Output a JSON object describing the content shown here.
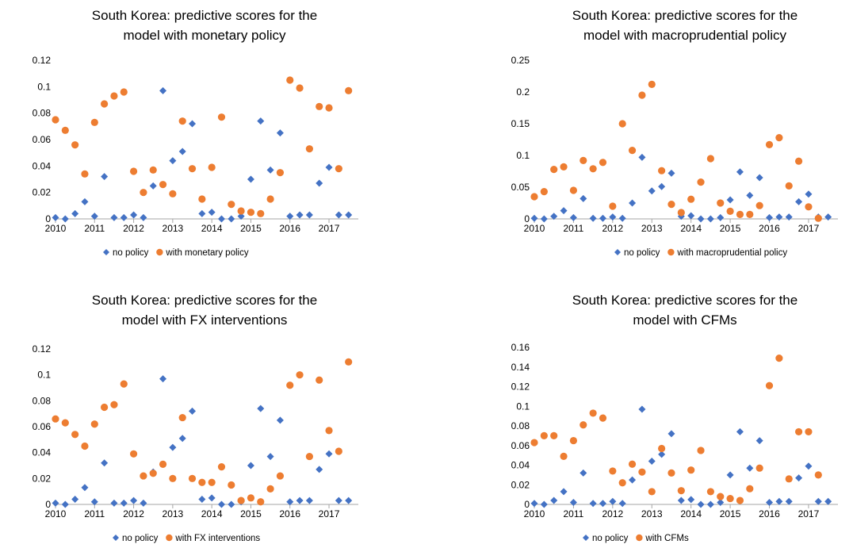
{
  "colors": {
    "no_policy": "#4472C4",
    "with_policy": "#ED7D31",
    "axis": "#A6A6A6",
    "text": "#000000"
  },
  "chart_data": [
    {
      "type": "scatter",
      "title": [
        "South Korea: predictive scores for the",
        "model with monetary policy"
      ],
      "ylim": [
        0,
        0.12
      ],
      "yticks": [
        0,
        0.02,
        0.04,
        0.06,
        0.08,
        0.1,
        0.12
      ],
      "ytick_labels": [
        "0",
        "0.02",
        "0.04",
        "0.06",
        "0.08",
        "0.1",
        "0.12"
      ],
      "xlim": [
        2010,
        2017.75
      ],
      "xticks": [
        2010,
        2011,
        2012,
        2013,
        2014,
        2015,
        2016,
        2017
      ],
      "xtick_labels": [
        "2010",
        "2011",
        "2012",
        "2013",
        "2014",
        "2015",
        "2016",
        "2017"
      ],
      "legend": [
        "no policy",
        "with monetary policy"
      ],
      "legend_position": "bottom",
      "series": [
        {
          "name": "no policy",
          "marker": "diamond",
          "x": [
            2010,
            2010.25,
            2010.5,
            2010.75,
            2011,
            2011.25,
            2011.5,
            2011.75,
            2012,
            2012.25,
            2012.5,
            2012.75,
            2013,
            2013.25,
            2013.5,
            2013.75,
            2014,
            2014.25,
            2014.5,
            2014.75,
            2015,
            2015.25,
            2015.5,
            2015.75,
            2016,
            2016.25,
            2016.5,
            2016.75,
            2017,
            2017.25,
            2017.5
          ],
          "y": [
            0.001,
            0.0,
            0.004,
            0.013,
            0.002,
            0.032,
            0.001,
            0.001,
            0.003,
            0.001,
            0.025,
            0.097,
            0.044,
            0.051,
            0.072,
            0.004,
            0.005,
            0.0,
            0.0,
            0.002,
            0.03,
            0.074,
            0.037,
            0.065,
            0.002,
            0.003,
            0.003,
            0.027,
            0.039,
            0.003,
            0.003
          ]
        },
        {
          "name": "with monetary policy",
          "marker": "circle",
          "x": [
            2010,
            2010.25,
            2010.5,
            2010.75,
            2011,
            2011.25,
            2011.5,
            2011.75,
            2012,
            2012.25,
            2012.5,
            2012.75,
            2013,
            2013.25,
            2013.5,
            2013.75,
            2014,
            2014.25,
            2014.5,
            2014.75,
            2015,
            2015.25,
            2015.5,
            2015.75,
            2016,
            2016.25,
            2016.5,
            2016.75,
            2017,
            2017.25,
            2017.5
          ],
          "y": [
            0.075,
            0.067,
            0.056,
            0.034,
            0.073,
            0.087,
            0.093,
            0.096,
            0.036,
            0.02,
            0.037,
            0.026,
            0.019,
            0.074,
            0.038,
            0.015,
            0.039,
            0.077,
            0.011,
            0.006,
            0.005,
            0.004,
            0.015,
            0.035,
            0.105,
            0.099,
            0.053,
            0.085,
            0.084,
            0.038,
            0.097
          ]
        }
      ]
    },
    {
      "type": "scatter",
      "title": [
        "South Korea: predictive scores for the",
        "model with macroprudential policy"
      ],
      "ylim": [
        0,
        0.25
      ],
      "yticks": [
        0,
        0.05,
        0.1,
        0.15,
        0.2,
        0.25
      ],
      "ytick_labels": [
        "0",
        "0.05",
        "0.1",
        "0.15",
        "0.2",
        "0.25"
      ],
      "xlim": [
        2010,
        2017.75
      ],
      "xticks": [
        2010,
        2011,
        2012,
        2013,
        2014,
        2015,
        2016,
        2017
      ],
      "xtick_labels": [
        "2010",
        "2011",
        "2012",
        "2013",
        "2014",
        "2015",
        "2016",
        "2017"
      ],
      "legend": [
        "no policy",
        "with macroprudential policy"
      ],
      "legend_position": "bottom",
      "series": [
        {
          "name": "no policy",
          "marker": "diamond",
          "x": [
            2010,
            2010.25,
            2010.5,
            2010.75,
            2011,
            2011.25,
            2011.5,
            2011.75,
            2012,
            2012.25,
            2012.5,
            2012.75,
            2013,
            2013.25,
            2013.5,
            2013.75,
            2014,
            2014.25,
            2014.5,
            2014.75,
            2015,
            2015.25,
            2015.5,
            2015.75,
            2016,
            2016.25,
            2016.5,
            2016.75,
            2017,
            2017.25,
            2017.5
          ],
          "y": [
            0.001,
            0.0,
            0.004,
            0.013,
            0.002,
            0.032,
            0.001,
            0.001,
            0.003,
            0.001,
            0.025,
            0.097,
            0.044,
            0.051,
            0.072,
            0.004,
            0.005,
            0.0,
            0.0,
            0.002,
            0.03,
            0.074,
            0.037,
            0.065,
            0.002,
            0.003,
            0.003,
            0.027,
            0.039,
            0.003,
            0.003
          ]
        },
        {
          "name": "with macroprudential policy",
          "marker": "circle",
          "x": [
            2010,
            2010.25,
            2010.5,
            2010.75,
            2011,
            2011.25,
            2011.5,
            2011.75,
            2012,
            2012.25,
            2012.5,
            2012.75,
            2013,
            2013.25,
            2013.5,
            2013.75,
            2014,
            2014.25,
            2014.5,
            2014.75,
            2015,
            2015.25,
            2015.5,
            2015.75,
            2016,
            2016.25,
            2016.5,
            2016.75,
            2017,
            2017.25
          ],
          "y": [
            0.035,
            0.043,
            0.078,
            0.082,
            0.045,
            0.092,
            0.079,
            0.089,
            0.02,
            0.15,
            0.108,
            0.195,
            0.212,
            0.076,
            0.023,
            0.01,
            0.031,
            0.058,
            0.095,
            0.025,
            0.012,
            0.007,
            0.007,
            0.021,
            0.117,
            0.128,
            0.052,
            0.091,
            0.019,
            0.001
          ]
        }
      ]
    },
    {
      "type": "scatter",
      "title": [
        "South Korea: predictive scores for the",
        "model with FX interventions"
      ],
      "ylim": [
        0,
        0.12
      ],
      "yticks": [
        0,
        0.02,
        0.04,
        0.06,
        0.08,
        0.1,
        0.12
      ],
      "ytick_labels": [
        "0",
        "0.02",
        "0.04",
        "0.06",
        "0.08",
        "0.1",
        "0.12"
      ],
      "xlim": [
        2010,
        2017.75
      ],
      "xticks": [
        2010,
        2011,
        2012,
        2013,
        2014,
        2015,
        2016,
        2017
      ],
      "xtick_labels": [
        "2010",
        "2011",
        "2012",
        "2013",
        "2014",
        "2015",
        "2016",
        "2017"
      ],
      "legend": [
        "no policy",
        "with FX interventions"
      ],
      "legend_position": "bottom",
      "series": [
        {
          "name": "no policy",
          "marker": "diamond",
          "x": [
            2010,
            2010.25,
            2010.5,
            2010.75,
            2011,
            2011.25,
            2011.5,
            2011.75,
            2012,
            2012.25,
            2012.5,
            2012.75,
            2013,
            2013.25,
            2013.5,
            2013.75,
            2014,
            2014.25,
            2014.5,
            2014.75,
            2015,
            2015.25,
            2015.5,
            2015.75,
            2016,
            2016.25,
            2016.5,
            2016.75,
            2017,
            2017.25,
            2017.5
          ],
          "y": [
            0.001,
            0.0,
            0.004,
            0.013,
            0.002,
            0.032,
            0.001,
            0.001,
            0.003,
            0.001,
            0.025,
            0.097,
            0.044,
            0.051,
            0.072,
            0.004,
            0.005,
            0.0,
            0.0,
            0.002,
            0.03,
            0.074,
            0.037,
            0.065,
            0.002,
            0.003,
            0.003,
            0.027,
            0.039,
            0.003,
            0.003
          ]
        },
        {
          "name": "with FX interventions",
          "marker": "circle",
          "x": [
            2010,
            2010.25,
            2010.5,
            2010.75,
            2011,
            2011.25,
            2011.5,
            2011.75,
            2012,
            2012.25,
            2012.5,
            2012.75,
            2013,
            2013.25,
            2013.5,
            2013.75,
            2014,
            2014.25,
            2014.5,
            2014.75,
            2015,
            2015.25,
            2015.5,
            2015.75,
            2016,
            2016.25,
            2016.5,
            2016.75,
            2017,
            2017.25,
            2017.5
          ],
          "y": [
            0.066,
            0.063,
            0.054,
            0.045,
            0.062,
            0.075,
            0.077,
            0.093,
            0.039,
            0.022,
            0.024,
            0.031,
            0.02,
            0.067,
            0.02,
            0.017,
            0.017,
            0.029,
            0.015,
            0.003,
            0.005,
            0.002,
            0.012,
            0.022,
            0.092,
            0.1,
            0.037,
            0.096,
            0.057,
            0.041,
            0.11
          ]
        }
      ]
    },
    {
      "type": "scatter",
      "title": [
        "South Korea: predictive scores for the",
        "model with CFMs"
      ],
      "ylim": [
        0,
        0.16
      ],
      "yticks": [
        0,
        0.02,
        0.04,
        0.06,
        0.08,
        0.1,
        0.12,
        0.14,
        0.16
      ],
      "ytick_labels": [
        "0",
        "0.02",
        "0.04",
        "0.06",
        "0.08",
        "0.1",
        "0.12",
        "0.14",
        "0.16"
      ],
      "xlim": [
        2010,
        2017.75
      ],
      "xticks": [
        2010,
        2011,
        2012,
        2013,
        2014,
        2015,
        2016,
        2017
      ],
      "xtick_labels": [
        "2010",
        "2011",
        "2012",
        "2013",
        "2014",
        "2015",
        "2016",
        "2017"
      ],
      "legend": [
        "no policy",
        "with CFMs"
      ],
      "legend_position": "bottom",
      "series": [
        {
          "name": "no policy",
          "marker": "diamond",
          "x": [
            2010,
            2010.25,
            2010.5,
            2010.75,
            2011,
            2011.25,
            2011.5,
            2011.75,
            2012,
            2012.25,
            2012.5,
            2012.75,
            2013,
            2013.25,
            2013.5,
            2013.75,
            2014,
            2014.25,
            2014.5,
            2014.75,
            2015,
            2015.25,
            2015.5,
            2015.75,
            2016,
            2016.25,
            2016.5,
            2016.75,
            2017,
            2017.25,
            2017.5
          ],
          "y": [
            0.001,
            0.0,
            0.004,
            0.013,
            0.002,
            0.032,
            0.001,
            0.001,
            0.003,
            0.001,
            0.025,
            0.097,
            0.044,
            0.051,
            0.072,
            0.004,
            0.005,
            0.0,
            0.0,
            0.002,
            0.03,
            0.074,
            0.037,
            0.065,
            0.002,
            0.003,
            0.003,
            0.027,
            0.039,
            0.003,
            0.003
          ]
        },
        {
          "name": "with CFMs",
          "marker": "circle",
          "x": [
            2010,
            2010.25,
            2010.5,
            2010.75,
            2011,
            2011.25,
            2011.5,
            2011.75,
            2012,
            2012.25,
            2012.5,
            2012.75,
            2013,
            2013.25,
            2013.5,
            2013.75,
            2014,
            2014.25,
            2014.5,
            2014.75,
            2015,
            2015.25,
            2015.5,
            2015.75,
            2016,
            2016.25,
            2016.5,
            2016.75,
            2017,
            2017.25
          ],
          "y": [
            0.063,
            0.07,
            0.07,
            0.049,
            0.065,
            0.081,
            0.093,
            0.088,
            0.034,
            0.022,
            0.041,
            0.033,
            0.013,
            0.057,
            0.032,
            0.014,
            0.035,
            0.055,
            0.013,
            0.008,
            0.006,
            0.004,
            0.016,
            0.037,
            0.121,
            0.149,
            0.026,
            0.074,
            0.074,
            0.03
          ]
        }
      ]
    }
  ]
}
